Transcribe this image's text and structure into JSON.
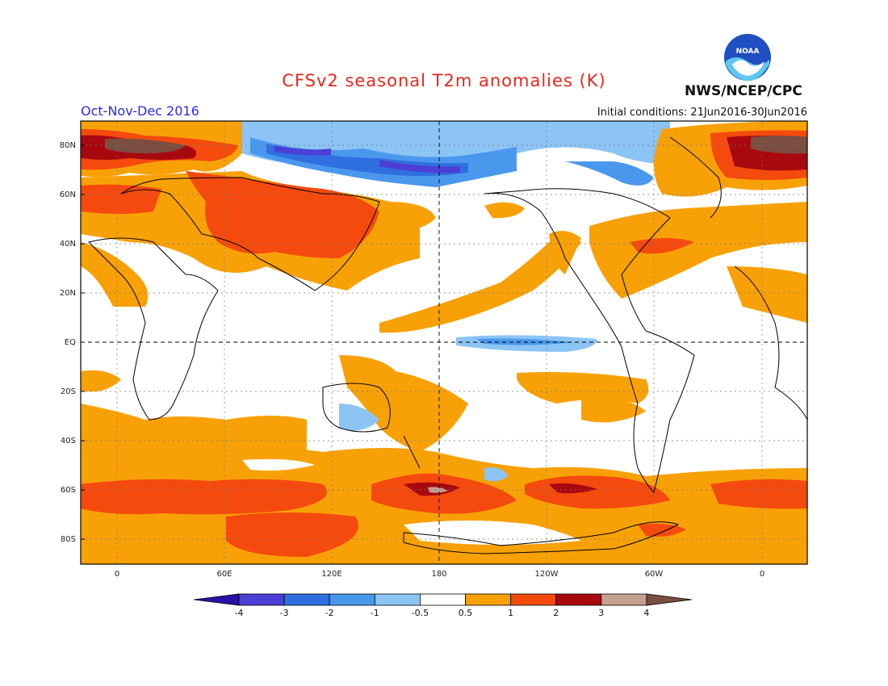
{
  "header": {
    "title": "CFSv2 seasonal T2m anomalies (K)",
    "period": "Oct-Nov-Dec 2016",
    "initial_conditions": "Initial conditions: 21Jun2016-30Jun2016",
    "agency": "NWS/NCEP/CPC",
    "logo_text": "NOAA"
  },
  "map": {
    "lat_labels": [
      "80N",
      "60N",
      "40N",
      "20N",
      "EQ",
      "20S",
      "40S",
      "60S",
      "80S"
    ],
    "lat_values": [
      80,
      60,
      40,
      20,
      0,
      -20,
      -40,
      -60,
      -80
    ],
    "lon_labels": [
      "0",
      "60E",
      "120E",
      "180",
      "120W",
      "60W",
      "0"
    ]
  },
  "colorbar": {
    "labels": [
      "-4",
      "-3",
      "-2",
      "-1",
      "-0.5",
      "0.5",
      "1",
      "2",
      "3",
      "4"
    ],
    "colors": [
      "#2a0fa8",
      "#4c3fd6",
      "#2f6fe0",
      "#4a98ee",
      "#8cc4f5",
      "#ffffff",
      "#f7a107",
      "#f54a0e",
      "#a8090f",
      "#c4a08f",
      "#7a4e40"
    ]
  },
  "colors": {
    "title": "#e8261c",
    "period": "#2a2ae0",
    "land_outline": "#000000"
  }
}
